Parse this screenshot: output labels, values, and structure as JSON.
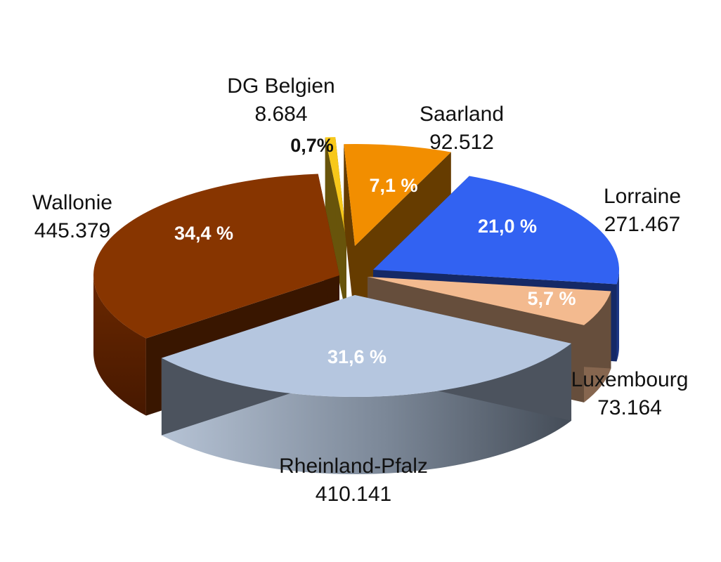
{
  "chart_data": {
    "type": "pie",
    "title": "",
    "colors": {
      "Saarland": "#f28e00",
      "Lorraine": "#3262f2",
      "Luxembourg": "#f3ba8f",
      "Rheinland-Pfalz": "#b5c6df",
      "Wallonie": "#873500",
      "DG Belgien": "#f7c81a"
    },
    "slices": [
      {
        "name": "Saarland",
        "value_label": "92.512",
        "value": 92512,
        "percent_label": "7,1 %",
        "percent": 7.1
      },
      {
        "name": "Lorraine",
        "value_label": "271.467",
        "value": 271467,
        "percent_label": "21,0 %",
        "percent": 21.0
      },
      {
        "name": "Luxembourg",
        "value_label": "73.164",
        "value": 73164,
        "percent_label": "5,7 %",
        "percent": 5.7
      },
      {
        "name": "Rheinland-Pfalz",
        "value_label": "410.141",
        "value": 410141,
        "percent_label": "31,6 %",
        "percent": 31.6
      },
      {
        "name": "Wallonie",
        "value_label": "445.379",
        "value": 445379,
        "percent_label": "34,4 %",
        "percent": 34.4
      },
      {
        "name": "DG Belgien",
        "value_label": "8.684",
        "value": 8684,
        "percent_label": "0,7%",
        "percent": 0.7
      }
    ]
  }
}
